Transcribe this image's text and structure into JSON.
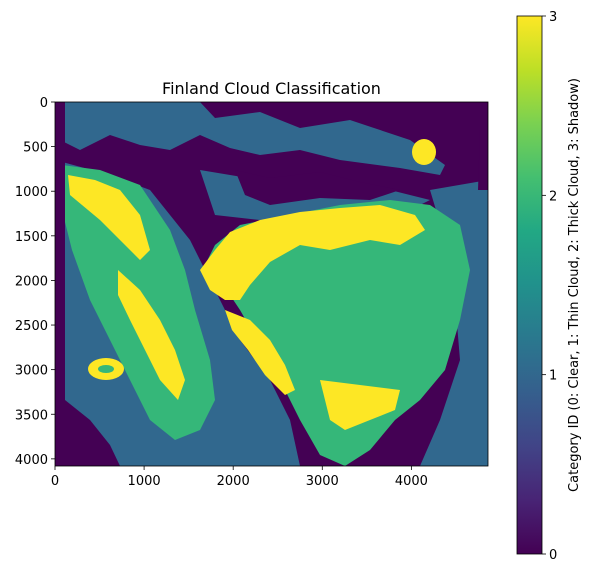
{
  "chart_data": {
    "type": "heatmap",
    "title": "Finland Cloud Classification",
    "xlabel": "",
    "ylabel": "",
    "xlim": [
      0,
      4860
    ],
    "ylim": [
      4080,
      0
    ],
    "x_ticks": [
      0,
      1000,
      2000,
      3000,
      4000
    ],
    "x_tick_labels": [
      "0",
      "1000",
      "2000",
      "3000",
      "4000"
    ],
    "y_ticks": [
      0,
      500,
      1000,
      1500,
      2000,
      2500,
      3000,
      3500,
      4000
    ],
    "y_tick_labels": [
      "0",
      "500",
      "1000",
      "1500",
      "2000",
      "2500",
      "3000",
      "3500",
      "4000"
    ],
    "colormap": "viridis",
    "colorbar": {
      "label": "Category ID (0: Clear, 1: Thin Cloud, 2: Thick Cloud, 3: Shadow)",
      "range": [
        0,
        3
      ],
      "ticks": [
        0,
        1,
        2,
        3
      ],
      "tick_labels": [
        "0",
        "1",
        "2",
        "3"
      ]
    },
    "categories": [
      {
        "id": 0,
        "name": "Clear",
        "color": "#440154"
      },
      {
        "id": 1,
        "name": "Thin Cloud",
        "color": "#31688e"
      },
      {
        "id": 2,
        "name": "Thick Cloud",
        "color": "#35b779"
      },
      {
        "id": 3,
        "name": "Shadow",
        "color": "#fde725"
      }
    ],
    "grid": false
  }
}
